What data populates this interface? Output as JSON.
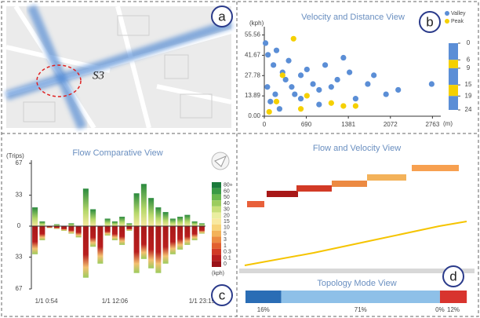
{
  "panel_labels": [
    "a",
    "b",
    "c",
    "d"
  ],
  "map": {
    "label": "S3"
  },
  "flow_velocity": {
    "title": "Flow and Velocity View"
  },
  "chart_data": [
    {
      "type": "scatter",
      "title": "Velocity and Distance View",
      "y_label": "(kph)",
      "x_label": "(m)",
      "xlim": [
        0,
        2900
      ],
      "ylim": [
        0,
        58
      ],
      "xticks": [
        0,
        690,
        1381,
        2072,
        2763
      ],
      "yticks": [
        {
          "value": 0,
          "label": "0.00"
        },
        13.89,
        27.78,
        41.67,
        55.56
      ],
      "series": [
        {
          "name": "Valley",
          "color": "#5b8ed6",
          "x": [
            20,
            60,
            150,
            200,
            300,
            350,
            400,
            450,
            500,
            600,
            700,
            800,
            900,
            1000,
            1100,
            1200,
            1300,
            1400,
            1500,
            1700,
            1800,
            2000,
            2200,
            100,
            250,
            50,
            180,
            2750,
            900,
            600
          ],
          "values": [
            50,
            42,
            35,
            45,
            30,
            25,
            38,
            20,
            15,
            28,
            32,
            22,
            18,
            35,
            20,
            25,
            40,
            30,
            12,
            22,
            28,
            15,
            18,
            10,
            5,
            20,
            15,
            22,
            8,
            12
          ]
        },
        {
          "name": "Peak",
          "color": "#f5d000",
          "x": [
            480,
            80,
            300,
            700,
            1100,
            1300,
            1500,
            200,
            600
          ],
          "values": [
            53,
            3,
            28,
            14,
            9,
            7,
            7,
            10,
            5
          ]
        }
      ],
      "colorbar": {
        "ticks": [
          0,
          6,
          9,
          15,
          19,
          24
        ],
        "colors": [
          "#5b8ed6",
          "#f5d000",
          "#5b8ed6",
          "#f5d000",
          "#5b8ed6"
        ]
      }
    },
    {
      "type": "diverging_bar",
      "title": "Flow Comparative View",
      "y_label": "(Trips)",
      "ylim": [
        -67,
        67
      ],
      "yticks": [
        67,
        33,
        0,
        {
          "value": -33,
          "label": "33"
        },
        {
          "value": -67,
          "label": "67"
        }
      ],
      "categories": [
        "1/1 0:54",
        null,
        null,
        null,
        null,
        null,
        null,
        null,
        null,
        null,
        null,
        "1/1 12:06",
        null,
        null,
        null,
        null,
        null,
        null,
        null,
        null,
        null,
        null,
        null,
        "1/1 23:19"
      ],
      "series": [
        {
          "values": [
            20,
            5,
            0,
            2,
            0,
            3,
            0,
            40,
            18,
            0,
            8,
            5,
            10,
            3,
            35,
            45,
            30,
            20,
            15,
            8,
            10,
            12,
            5,
            3
          ]
        },
        {
          "values": [
            -30,
            -15,
            -2,
            -3,
            -5,
            -8,
            -12,
            -55,
            -22,
            -40,
            -10,
            -15,
            -20,
            -5,
            -50,
            -35,
            -45,
            -50,
            -40,
            -30,
            -25,
            -20,
            -15,
            -8
          ]
        }
      ],
      "colorbar": {
        "unit": "(kph)",
        "labels": [
          "80+",
          "60",
          "50",
          "40",
          "30",
          "20",
          "15",
          "10",
          "5",
          "3",
          "1",
          "0.3",
          "0.1",
          "0"
        ],
        "colors": [
          "#1a7a3a",
          "#3a9a45",
          "#6ab84e",
          "#9ccc5e",
          "#c8df7a",
          "#eaeea0",
          "#f8e9a0",
          "#f7d47a",
          "#f3b25a",
          "#ec8a42",
          "#e2602f",
          "#d23a26",
          "#b81e1e",
          "#9a1218"
        ]
      }
    },
    {
      "type": "stacked_bar",
      "title": "Topology Mode View",
      "xlim": [
        0,
        100
      ],
      "values": [
        16,
        71,
        0,
        12
      ],
      "value_labels": [
        "16%",
        "71%",
        "0%",
        "12%"
      ],
      "colors": [
        "#2a6db5",
        "#8ec0e8",
        "#f0a060",
        "#d8342e"
      ]
    }
  ]
}
